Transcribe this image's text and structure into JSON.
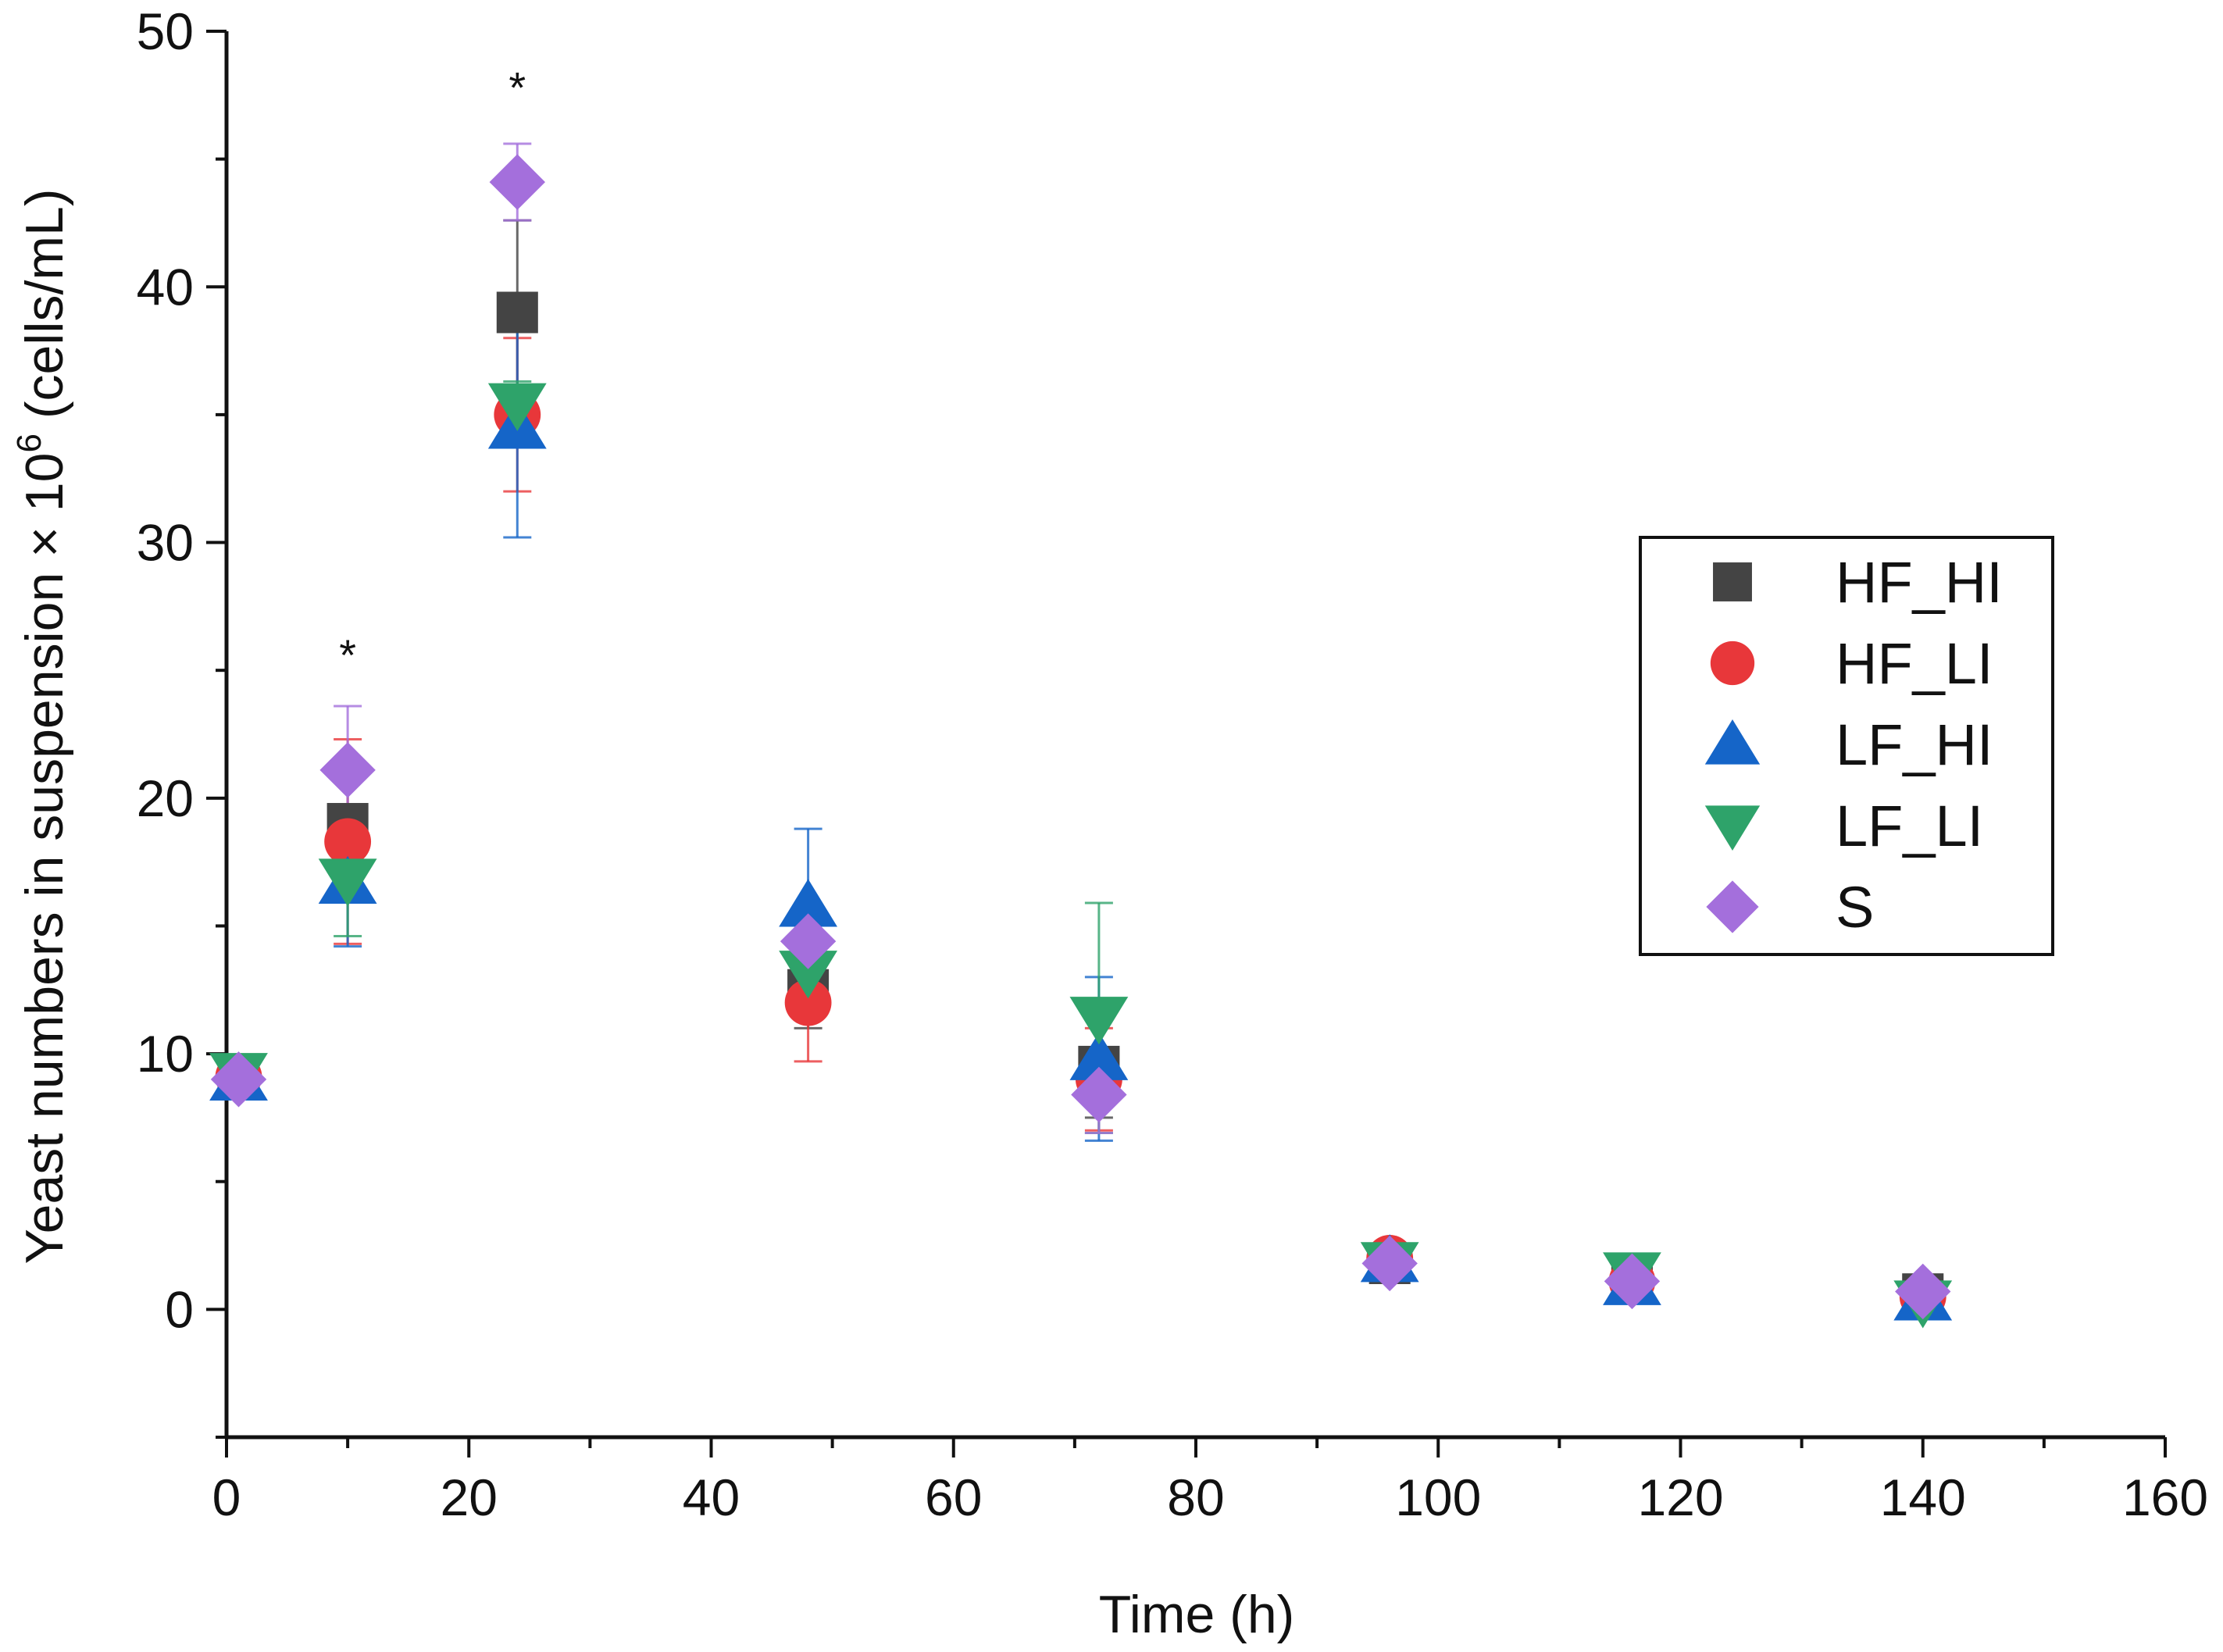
{
  "chart_data": {
    "type": "scatter",
    "title": "",
    "xlabel": "Time (h)",
    "ylabel": "Yeast numbers in suspension × 10",
    "ylabel_superscript": "6",
    "ylabel_suffix": " (cells/mL)",
    "xlim": [
      0,
      160
    ],
    "ylim": [
      -5,
      50
    ],
    "xticks": [
      0,
      20,
      40,
      60,
      80,
      100,
      120,
      140,
      160
    ],
    "yticks": [
      0,
      10,
      20,
      30,
      40,
      50
    ],
    "grid": false,
    "legend_position": "right",
    "series": [
      {
        "name": "HF_HI",
        "marker": "square",
        "color": "#444444",
        "points": [
          {
            "x": 1,
            "y": 9.1,
            "err": 0.4
          },
          {
            "x": 10,
            "y": 19.0,
            "err": 1.8
          },
          {
            "x": 24,
            "y": 39.0,
            "err": 3.6
          },
          {
            "x": 48,
            "y": 12.5,
            "err": 1.5
          },
          {
            "x": 72,
            "y": 9.5,
            "err": 2.0
          },
          {
            "x": 96,
            "y": 1.8,
            "err": 0.5
          },
          {
            "x": 116,
            "y": 1.0,
            "err": 0.3
          },
          {
            "x": 140,
            "y": 0.6,
            "err": 0.3
          }
        ]
      },
      {
        "name": "HF_LI",
        "marker": "circle",
        "color": "#e8373a",
        "points": [
          {
            "x": 1,
            "y": 9.1,
            "err": 0.4
          },
          {
            "x": 10,
            "y": 18.3,
            "err": 4.0
          },
          {
            "x": 24,
            "y": 35.0,
            "err": 3.0
          },
          {
            "x": 48,
            "y": 12.0,
            "err": 2.3
          },
          {
            "x": 72,
            "y": 9.0,
            "err": 2.0
          },
          {
            "x": 96,
            "y": 2.0,
            "err": 0.5
          },
          {
            "x": 116,
            "y": 1.1,
            "err": 0.3
          },
          {
            "x": 140,
            "y": 0.5,
            "err": 0.3
          }
        ]
      },
      {
        "name": "LF_HI",
        "marker": "triangle-up",
        "color": "#1565c8",
        "points": [
          {
            "x": 1,
            "y": 9.0,
            "err": 0.4
          },
          {
            "x": 10,
            "y": 16.7,
            "err": 2.5
          },
          {
            "x": 24,
            "y": 34.5,
            "err": 4.3
          },
          {
            "x": 48,
            "y": 15.8,
            "err": 3.0
          },
          {
            "x": 72,
            "y": 9.8,
            "err": 3.2
          },
          {
            "x": 96,
            "y": 1.9,
            "err": 0.5
          },
          {
            "x": 116,
            "y": 1.0,
            "err": 0.3
          },
          {
            "x": 140,
            "y": 0.4,
            "err": 0.3
          }
        ]
      },
      {
        "name": "LF_LI",
        "marker": "triangle-down",
        "color": "#2ea36a",
        "points": [
          {
            "x": 1,
            "y": 9.2,
            "err": 0.4
          },
          {
            "x": 10,
            "y": 16.8,
            "err": 2.2
          },
          {
            "x": 24,
            "y": 35.4,
            "err": 0.9
          },
          {
            "x": 48,
            "y": 13.2,
            "err": 1.5
          },
          {
            "x": 72,
            "y": 11.4,
            "err": 4.5
          },
          {
            "x": 96,
            "y": 1.8,
            "err": 0.5
          },
          {
            "x": 116,
            "y": 1.4,
            "err": 0.3
          },
          {
            "x": 140,
            "y": 0.3,
            "err": 0.3
          }
        ]
      },
      {
        "name": "S",
        "marker": "diamond",
        "color": "#a46fdc",
        "points": [
          {
            "x": 1,
            "y": 9.0,
            "err": 0.4
          },
          {
            "x": 10,
            "y": 21.1,
            "err": 2.5
          },
          {
            "x": 24,
            "y": 44.1,
            "err": 1.5
          },
          {
            "x": 48,
            "y": 14.4,
            "err": 1.5
          },
          {
            "x": 72,
            "y": 8.4,
            "err": 1.5
          },
          {
            "x": 96,
            "y": 1.8,
            "err": 0.6
          },
          {
            "x": 116,
            "y": 1.1,
            "err": 0.4
          },
          {
            "x": 140,
            "y": 0.7,
            "err": 0.3
          }
        ]
      }
    ],
    "annotations": [
      {
        "text": "*",
        "x": 24,
        "y": 47.2
      },
      {
        "text": "*",
        "x": 10,
        "y": 25.0
      }
    ]
  }
}
